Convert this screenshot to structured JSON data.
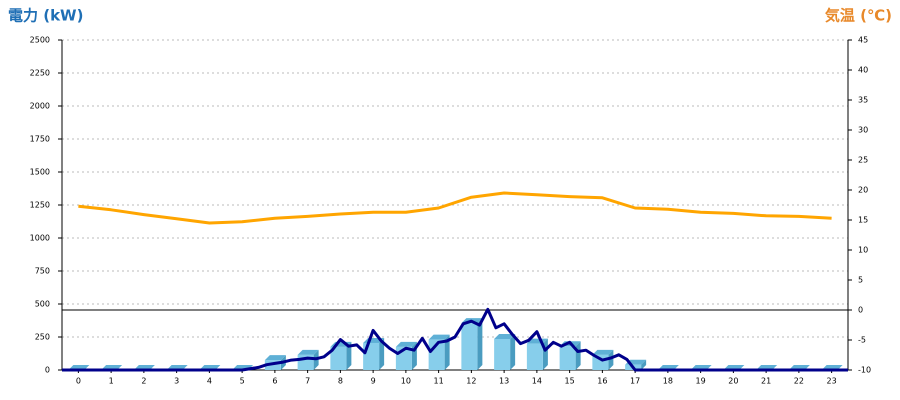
{
  "chart_data": {
    "type": "combo",
    "title": "電力 (kW)",
    "y2_title": "気温 (℃)",
    "categories": [
      "0",
      "1",
      "2",
      "3",
      "4",
      "5",
      "6",
      "7",
      "8",
      "9",
      "10",
      "11",
      "12",
      "13",
      "14",
      "15",
      "16",
      "17",
      "18",
      "19",
      "20",
      "21",
      "22",
      "23"
    ],
    "ylim": [
      0,
      2500
    ],
    "yticks": [
      0,
      250,
      500,
      750,
      1000,
      1250,
      1500,
      1750,
      2000,
      2250,
      2500
    ],
    "y2lim": [
      -10,
      45
    ],
    "y2ticks": [
      -10,
      -5,
      0,
      5,
      10,
      15,
      20,
      25,
      30,
      35,
      40,
      45
    ],
    "grid": true,
    "y2_zero_line": true,
    "series": [
      {
        "type": "bar",
        "color": "#87ceeb",
        "values": [
          0,
          0,
          0,
          0,
          0,
          0,
          75,
          115,
          175,
          205,
          175,
          230,
          355,
          235,
          200,
          180,
          115,
          40,
          0,
          0,
          0,
          0,
          0,
          0
        ]
      },
      {
        "type": "line",
        "color": "#00008b",
        "x": [
          -0.5,
          5,
          5.5,
          5.75,
          6,
          6.25,
          6.5,
          6.75,
          7,
          7.25,
          7.5,
          7.75,
          8,
          8.25,
          8.5,
          8.75,
          9,
          9.25,
          9.5,
          9.75,
          10,
          10.25,
          10.5,
          10.75,
          11,
          11.25,
          11.5,
          11.75,
          12,
          12.25,
          12.5,
          12.75,
          13,
          13.25,
          13.5,
          13.75,
          14,
          14.25,
          14.5,
          14.75,
          15,
          15.25,
          15.5,
          15.75,
          16,
          16.25,
          16.5,
          16.75,
          17,
          23.5
        ],
        "values": [
          0,
          0,
          20,
          40,
          50,
          60,
          75,
          80,
          90,
          85,
          100,
          150,
          230,
          180,
          190,
          130,
          300,
          220,
          165,
          125,
          165,
          150,
          240,
          140,
          210,
          220,
          250,
          350,
          370,
          340,
          460,
          320,
          350,
          270,
          200,
          225,
          290,
          150,
          210,
          180,
          210,
          140,
          150,
          110,
          75,
          90,
          115,
          80,
          0,
          0
        ]
      },
      {
        "type": "line",
        "axis": "y2",
        "color": "#ffa500",
        "values": [
          17.3,
          16.7,
          15.9,
          15.2,
          14.5,
          14.7,
          15.3,
          15.6,
          16.0,
          16.3,
          16.3,
          17.0,
          18.8,
          19.5,
          19.2,
          18.9,
          18.7,
          17.0,
          16.8,
          16.3,
          16.1,
          15.7,
          15.6,
          15.3
        ]
      }
    ]
  }
}
